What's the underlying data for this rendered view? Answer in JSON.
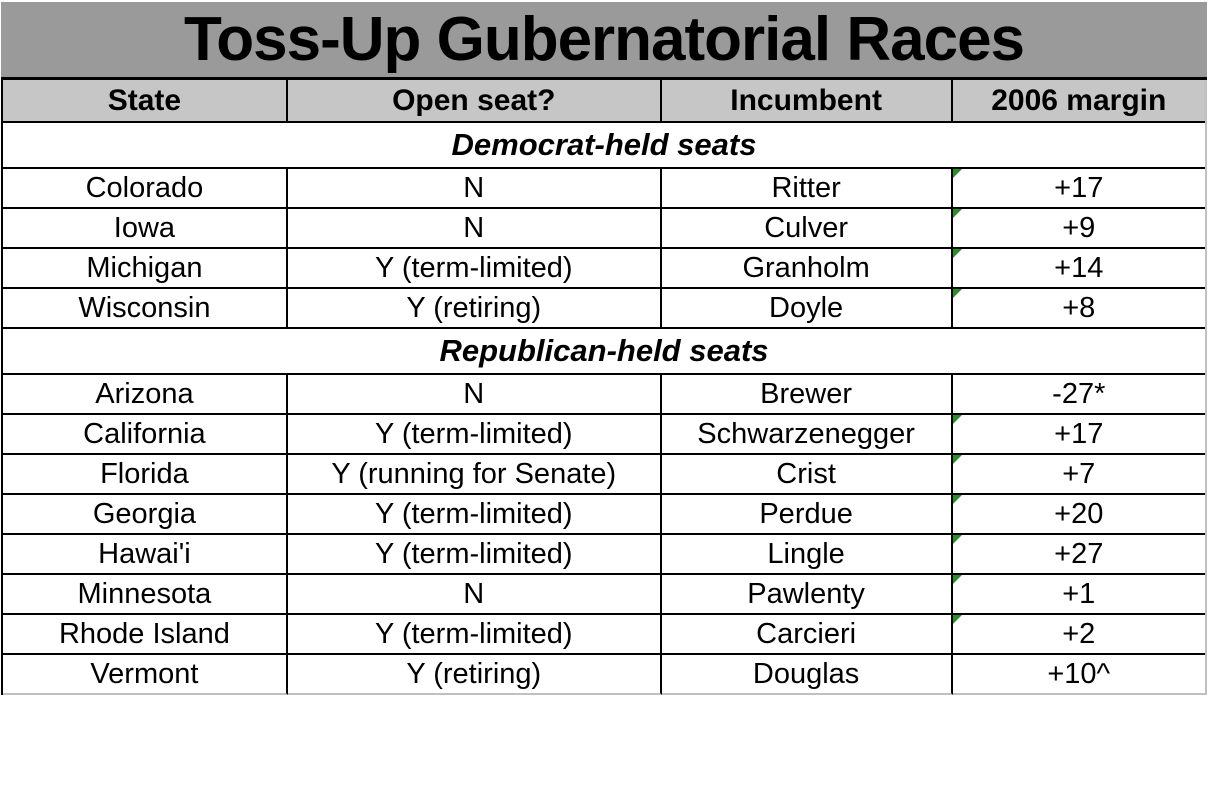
{
  "title": "Toss-Up Gubernatorial Races",
  "chart_data": {
    "type": "table",
    "title": "Toss-Up Gubernatorial Races",
    "columns": [
      "State",
      "Open seat?",
      "Incumbent",
      "2006 margin"
    ],
    "sections": [
      {
        "label": "Democrat-held seats",
        "rows": [
          {
            "state": "Colorado",
            "open_seat": "N",
            "incumbent": "Ritter",
            "margin_2006": "+17",
            "cell_indicator": true
          },
          {
            "state": "Iowa",
            "open_seat": "N",
            "incumbent": "Culver",
            "margin_2006": "+9",
            "cell_indicator": true
          },
          {
            "state": "Michigan",
            "open_seat": "Y (term-limited)",
            "incumbent": "Granholm",
            "margin_2006": "+14",
            "cell_indicator": true
          },
          {
            "state": "Wisconsin",
            "open_seat": "Y (retiring)",
            "incumbent": "Doyle",
            "margin_2006": "+8",
            "cell_indicator": true
          }
        ]
      },
      {
        "label": "Republican-held seats",
        "rows": [
          {
            "state": "Arizona",
            "open_seat": "N",
            "incumbent": "Brewer",
            "margin_2006": "-27*",
            "cell_indicator": false
          },
          {
            "state": "California",
            "open_seat": "Y (term-limited)",
            "incumbent": "Schwarzenegger",
            "margin_2006": "+17",
            "cell_indicator": true
          },
          {
            "state": "Florida",
            "open_seat": "Y (running for Senate)",
            "incumbent": "Crist",
            "margin_2006": "+7",
            "cell_indicator": true
          },
          {
            "state": "Georgia",
            "open_seat": "Y (term-limited)",
            "incumbent": "Perdue",
            "margin_2006": "+20",
            "cell_indicator": true
          },
          {
            "state": "Hawai'i",
            "open_seat": "Y (term-limited)",
            "incumbent": "Lingle",
            "margin_2006": "+27",
            "cell_indicator": true
          },
          {
            "state": "Minnesota",
            "open_seat": "N",
            "incumbent": "Pawlenty",
            "margin_2006": "+1",
            "cell_indicator": true
          },
          {
            "state": "Rhode Island",
            "open_seat": "Y (term-limited)",
            "incumbent": "Carcieri",
            "margin_2006": "+2",
            "cell_indicator": true
          },
          {
            "state": "Vermont",
            "open_seat": "Y (retiring)",
            "incumbent": "Douglas",
            "margin_2006": "+10^",
            "cell_indicator": false
          }
        ]
      }
    ],
    "layout_hints": {
      "grid": true,
      "section_rows_span_all_columns": true,
      "indicator_meaning": "small green triangle in top-left corner of margin cell"
    }
  },
  "colors": {
    "title_bg": "#9a9a9a",
    "header_bg": "#c6c6c6",
    "row_bg": "#ffffff",
    "grid_border": "#000000",
    "outer_right_border": "#c0c0c0",
    "indicator_green": "#2e8b2e"
  }
}
